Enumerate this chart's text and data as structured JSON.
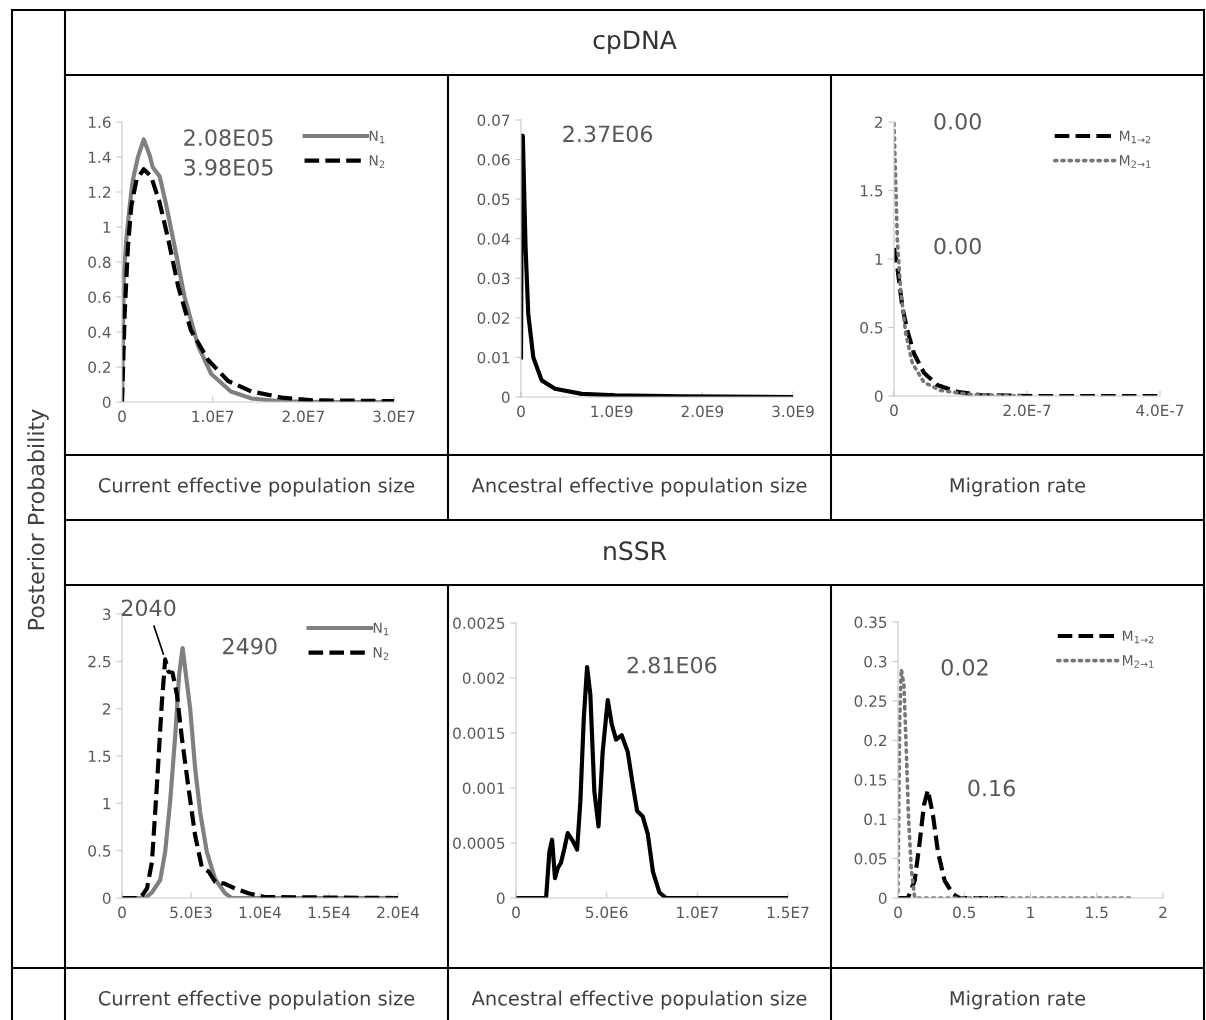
{
  "chart_data": [
    {
      "type": "line",
      "xlabel": "Current effective population size",
      "xlim": [
        0,
        30000000
      ],
      "ylim": [
        0,
        1.6
      ],
      "xticks": [
        0,
        {
          "value": 10000000,
          "label": "1.0E7"
        },
        {
          "value": 20000000,
          "label": "2.0E7"
        },
        {
          "value": 30000000,
          "label": "3.0E7"
        }
      ],
      "yticks": [
        0,
        0.2,
        0.4,
        0.6,
        0.8,
        1,
        1.2,
        1.4,
        1.6
      ],
      "grid": false,
      "legend": "top right",
      "marker": "none",
      "series": [
        {
          "name": "N$_{1}$",
          "color": "#808080",
          "line_style": "solid",
          "x": [
            0,
            200000,
            480000,
            850000,
            1200000,
            1760000,
            2400000,
            3050000,
            3400000,
            4150000,
            4900000,
            5800000,
            6900000,
            8400000,
            9850000,
            12000000,
            14300000,
            17600000,
            23000000,
            30000000
          ],
          "values": [
            0,
            0.72,
            0.93,
            1.12,
            1.27,
            1.4,
            1.5,
            1.41,
            1.34,
            1.29,
            1.12,
            0.89,
            0.6,
            0.32,
            0.16,
            0.06,
            0.02,
            0.004,
            0,
            0
          ]
        },
        {
          "name": "N$_{2}$",
          "color": "#000000",
          "line_style": "dashed",
          "x": [
            0,
            300000,
            660000,
            1030000,
            1600000,
            2400000,
            3200000,
            4150000,
            5100000,
            6200000,
            7600000,
            9500000,
            11700000,
            14300000,
            17600000,
            21000000,
            30000000
          ],
          "values": [
            0,
            0.51,
            0.89,
            1.12,
            1.27,
            1.33,
            1.29,
            1.14,
            0.93,
            0.66,
            0.41,
            0.24,
            0.12,
            0.06,
            0.025,
            0.01,
            0.005
          ]
        }
      ],
      "annotations": [
        {
          "text": "2.08E05",
          "x": 2400000,
          "y": 1.5
        },
        {
          "text": "3.98E05",
          "x": 2400000,
          "y": 1.33
        }
      ]
    },
    {
      "type": "line",
      "xlabel": "Ancestral effective population size",
      "xlim": [
        0,
        3000000000
      ],
      "ylim": [
        0,
        0.07
      ],
      "xticks": [
        0,
        {
          "value": 1000000000,
          "label": "1.0E9"
        },
        {
          "value": 2000000000,
          "label": "2.0E9"
        },
        {
          "value": 3000000000,
          "label": "3.0E9"
        }
      ],
      "yticks": [
        0,
        0.01,
        0.02,
        0.03,
        0.04,
        0.05,
        0.06,
        0.07
      ],
      "grid": false,
      "marker": "none",
      "series": [
        {
          "color": "#000000",
          "line_style": "solid",
          "x": [
            0,
            10000000,
            20000000,
            50000000,
            80000000,
            136000000,
            228000000,
            375000000,
            670000000,
            1040000000,
            1770000000,
            3000000000
          ],
          "values": [
            0.01,
            0.066,
            0.066,
            0.038,
            0.021,
            0.01,
            0.0042,
            0.0021,
            0.0008,
            0.0004,
            0.0002,
            0
          ]
        }
      ],
      "annotations": [
        {
          "text": "2.37E06",
          "x": 20000000,
          "y": 0.066
        }
      ]
    },
    {
      "type": "line",
      "xlabel": "Migration rate",
      "xlim": [
        0,
        4e-07
      ],
      "ylim": [
        0,
        2
      ],
      "xticks": [
        0,
        {
          "value": 2e-07,
          "label": "2.0E-7"
        },
        {
          "value": 4e-07,
          "label": "4.0E-7"
        }
      ],
      "yticks": [
        0,
        0.5,
        1,
        1.5,
        2
      ],
      "grid": false,
      "legend": "top right",
      "marker": "none",
      "series": [
        {
          "name": "M$_{1→2}$",
          "color": "#000000",
          "line_style": "dashed",
          "x": [
            0,
            5e-09,
            1.26e-08,
            2e-08,
            3e-08,
            4.5e-08,
            6.5e-08,
            9.5e-08,
            1.3e-07,
            2.06e-07,
            4e-07
          ],
          "values": [
            1.08,
            0.94,
            0.65,
            0.48,
            0.31,
            0.17,
            0.08,
            0.03,
            0.007,
            0,
            0
          ]
        },
        {
          "name": "M$_{2→1}$",
          "color": "#777777",
          "line_style": "dotted",
          "x": [
            0,
            2.5e-09,
            5e-09,
            1e-08,
            1.76e-08,
            2.76e-08,
            4.5e-08,
            7e-08,
            1.16e-07,
            1.9e-07
          ],
          "values": [
            1.99,
            1.58,
            1.14,
            0.77,
            0.46,
            0.24,
            0.1,
            0.04,
            0.01,
            0
          ]
        }
      ],
      "annotations": [
        {
          "text": "0.00",
          "x": 0,
          "y": 1.99
        },
        {
          "text": "0.00",
          "x": 0,
          "y": 1.08
        }
      ]
    },
    {
      "type": "line",
      "xlabel": "Current effective population size",
      "xlim": [
        0,
        20000
      ],
      "ylim": [
        0,
        3
      ],
      "xticks": [
        0,
        {
          "value": 5000,
          "label": "5.0E3"
        },
        {
          "value": 10000,
          "label": "1.0E4"
        },
        {
          "value": 15000,
          "label": "1.5E4"
        },
        {
          "value": 20000,
          "label": "2.0E4"
        }
      ],
      "yticks": [
        0,
        0.5,
        1,
        1.5,
        2,
        2.5,
        3
      ],
      "grid": false,
      "legend": "top right",
      "marker": "none",
      "series": [
        {
          "name": "N$_{1}$",
          "color": "#808080",
          "line_style": "solid",
          "x": [
            0,
            1690,
            2170,
            2770,
            3130,
            3490,
            3860,
            4140,
            4390,
            4630,
            4940,
            5300,
            5660,
            6140,
            6750,
            7470,
            7950,
            20000
          ],
          "values": [
            0,
            0,
            0.06,
            0.19,
            0.49,
            1.02,
            1.72,
            2.36,
            2.64,
            2.36,
            2.0,
            1.37,
            0.91,
            0.49,
            0.2,
            0.05,
            0,
            0
          ]
        },
        {
          "name": "N$_{2}$",
          "color": "#000000",
          "line_style": "dashed",
          "x": [
            0,
            1330,
            1810,
            2170,
            2530,
            2890,
            3130,
            3370,
            3660,
            3980,
            4340,
            4820,
            5300,
            5780,
            6270,
            6750,
            7470,
            8190,
            9160,
            10360,
            20000
          ],
          "values": [
            0,
            0,
            0.1,
            0.38,
            1.19,
            2.07,
            2.52,
            2.39,
            2.38,
            2.15,
            1.69,
            1.16,
            0.66,
            0.33,
            0.28,
            0.17,
            0.15,
            0.1,
            0.05,
            0.01,
            0
          ]
        }
      ],
      "annotations": [
        {
          "text": "2040",
          "x": 3130,
          "y": 2.52
        },
        {
          "text": "2490",
          "x": 4390,
          "y": 2.64
        }
      ]
    },
    {
      "type": "line",
      "xlabel": "Ancestral effective population size",
      "xlim": [
        0,
        15000000
      ],
      "ylim": [
        0,
        0.0025
      ],
      "xticks": [
        0,
        {
          "value": 5000000,
          "label": "5.0E6"
        },
        {
          "value": 10000000,
          "label": "1.0E7"
        },
        {
          "value": 15000000,
          "label": "1.5E7"
        }
      ],
      "yticks": [
        0,
        0.0005,
        0.001,
        0.0015,
        0.002,
        0.0025
      ],
      "grid": false,
      "marker": "none",
      "series": [
        {
          "color": "#000000",
          "line_style": "solid",
          "x": [
            0,
            1660000,
            1840000,
            1990000,
            2150000,
            2300000,
            2480000,
            2670000,
            2850000,
            3130000,
            3370000,
            3550000,
            3740000,
            3920000,
            4100000,
            4320000,
            4550000,
            4780000,
            5060000,
            5280000,
            5520000,
            5830000,
            6160000,
            6440000,
            6680000,
            6990000,
            7270000,
            7550000,
            7910000,
            8280000,
            15000000
          ],
          "values": [
            0,
            0,
            0.00042,
            0.00053,
            0.00018,
            0.00027,
            0.00032,
            0.00045,
            0.00059,
            0.00052,
            0.00044,
            0.00088,
            0.00164,
            0.0021,
            0.00185,
            0.00097,
            0.00065,
            0.00133,
            0.0018,
            0.00158,
            0.00144,
            0.00148,
            0.00133,
            0.00103,
            0.00079,
            0.00074,
            0.00058,
            0.00024,
            5e-05,
            0,
            0
          ]
        }
      ],
      "annotations": [
        {
          "text": "2.81E06",
          "x": 3920000,
          "y": 0.0021
        }
      ]
    },
    {
      "type": "line",
      "xlabel": "Migration rate",
      "xlim": [
        0,
        2
      ],
      "ylim": [
        0,
        0.35
      ],
      "xticks": [
        0,
        0.5,
        1,
        1.5,
        2
      ],
      "yticks": [
        0,
        0.05,
        0.1,
        0.15,
        0.2,
        0.25,
        0.3,
        0.35
      ],
      "grid": false,
      "legend": "top right",
      "marker": "none",
      "series": [
        {
          "name": "M$_{1→2}$",
          "color": "#000000",
          "line_style": "dashed",
          "x": [
            0,
            0.075,
            0.126,
            0.164,
            0.196,
            0.226,
            0.264,
            0.302,
            0.352,
            0.415,
            0.465,
            0.8
          ],
          "values": [
            0,
            0,
            0.022,
            0.071,
            0.118,
            0.137,
            0.105,
            0.058,
            0.022,
            0.005,
            0,
            0
          ]
        },
        {
          "name": "M$_{2→1}$",
          "color": "#777777",
          "line_style": "dotted",
          "x": [
            0,
            0.013,
            0.025,
            0.045,
            0.063,
            0.08,
            0.1,
            0.126,
            1.77
          ],
          "values": [
            0.008,
            0.227,
            0.29,
            0.27,
            0.185,
            0.1,
            0.037,
            0,
            0
          ]
        }
      ],
      "annotations": [
        {
          "text": "0.02",
          "x": 0.025,
          "y": 0.29
        },
        {
          "text": "0.16",
          "x": 0.226,
          "y": 0.137
        }
      ]
    },
    {
      "type": "other",
      "ylabel": "Posterior Probability",
      "annotations": [
        "cpDNA",
        "nSSR"
      ]
    }
  ]
}
